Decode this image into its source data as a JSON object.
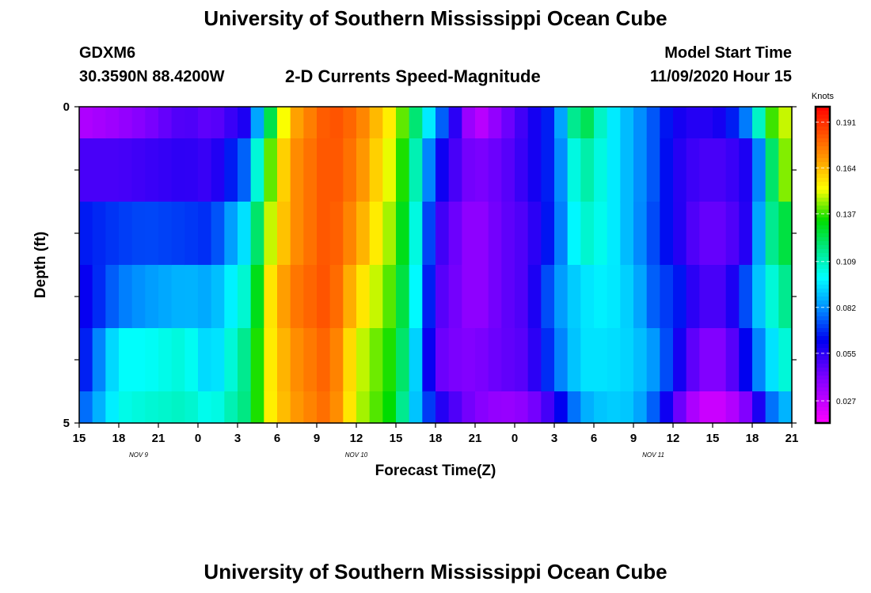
{
  "header": {
    "title_top": "University of Southern Mississippi Ocean Cube",
    "title_bottom": "University of Southern Mississippi Ocean Cube",
    "station": "GDXM6",
    "coords": "30.3590N 88.4200W",
    "subtitle": "2-D Currents Speed-Magnitude",
    "model_label": "Model Start Time",
    "model_time": "11/09/2020 Hour 15"
  },
  "chart_data": {
    "type": "heatmap",
    "title": "2-D Currents Speed-Magnitude",
    "xlabel": "Forecast Time(Z)",
    "ylabel": "Depth (ft)",
    "x_tick_labels": [
      "15",
      "18",
      "21",
      "0",
      "3",
      "6",
      "9",
      "12",
      "15",
      "18",
      "21",
      "0",
      "3",
      "6",
      "9",
      "12",
      "15",
      "18",
      "21"
    ],
    "x_date_labels": [
      {
        "label": "NOV  9",
        "tick_index": 1.5
      },
      {
        "label": "NOV  10",
        "tick_index": 7
      },
      {
        "label": "NOV  11",
        "tick_index": 14.5
      }
    ],
    "y_tick_labels": [
      {
        "label": "0",
        "depth": 0
      },
      {
        "label": "",
        "depth": 1
      },
      {
        "label": "",
        "depth": 2
      },
      {
        "label": "",
        "depth": 3
      },
      {
        "label": "",
        "depth": 4
      },
      {
        "label": "5",
        "depth": 5
      }
    ],
    "ylim": [
      0,
      5
    ],
    "hours": 54,
    "depth_levels": [
      0.25,
      1,
      2,
      3,
      4,
      4.75
    ],
    "colorbar": {
      "unit": "Knots",
      "min": 0.014,
      "max": 0.2,
      "ticks": [
        0.191,
        0.164,
        0.137,
        0.109,
        0.082,
        0.055,
        0.027
      ]
    },
    "keyframes": [
      [
        0,
        0.03,
        0.05,
        0.065,
        0.058,
        0.06,
        0.072
      ],
      [
        3,
        0.035,
        0.05,
        0.07,
        0.078,
        0.1,
        0.102
      ],
      [
        5,
        0.04,
        0.052,
        0.072,
        0.083,
        0.1,
        0.105
      ],
      [
        8,
        0.05,
        0.055,
        0.07,
        0.088,
        0.105,
        0.108
      ],
      [
        10,
        0.045,
        0.052,
        0.068,
        0.085,
        0.09,
        0.1
      ],
      [
        13,
        0.06,
        0.08,
        0.1,
        0.11,
        0.12,
        0.12
      ],
      [
        14,
        0.11,
        0.13,
        0.14,
        0.15,
        0.15,
        0.15
      ],
      [
        16,
        0.165,
        0.17,
        0.17,
        0.175,
        0.17,
        0.168
      ],
      [
        19,
        0.185,
        0.185,
        0.185,
        0.185,
        0.182,
        0.18
      ],
      [
        21,
        0.178,
        0.175,
        0.17,
        0.16,
        0.15,
        0.148
      ],
      [
        24,
        0.15,
        0.145,
        0.14,
        0.135,
        0.132,
        0.13
      ],
      [
        25,
        0.13,
        0.125,
        0.12,
        0.115,
        0.108,
        0.1
      ],
      [
        27,
        0.085,
        0.065,
        0.055,
        0.05,
        0.045,
        0.06
      ],
      [
        29,
        0.045,
        0.045,
        0.04,
        0.04,
        0.04,
        0.045
      ],
      [
        30,
        0.025,
        0.04,
        0.035,
        0.035,
        0.04,
        0.04
      ],
      [
        32,
        0.04,
        0.045,
        0.045,
        0.045,
        0.045,
        0.035
      ],
      [
        34,
        0.055,
        0.055,
        0.05,
        0.05,
        0.048,
        0.038
      ],
      [
        36,
        0.07,
        0.07,
        0.07,
        0.08,
        0.075,
        0.055
      ],
      [
        38,
        0.13,
        0.115,
        0.108,
        0.095,
        0.095,
        0.085
      ],
      [
        40,
        0.1,
        0.1,
        0.1,
        0.098,
        0.095,
        0.092
      ],
      [
        42,
        0.085,
        0.085,
        0.085,
        0.09,
        0.092,
        0.09
      ],
      [
        44,
        0.07,
        0.07,
        0.068,
        0.07,
        0.08,
        0.07
      ],
      [
        45,
        0.06,
        0.058,
        0.06,
        0.07,
        0.065,
        0.05
      ],
      [
        47,
        0.055,
        0.05,
        0.045,
        0.05,
        0.04,
        0.025
      ],
      [
        49,
        0.06,
        0.05,
        0.045,
        0.05,
        0.04,
        0.025
      ],
      [
        51,
        0.085,
        0.06,
        0.06,
        0.08,
        0.07,
        0.045
      ],
      [
        52,
        0.13,
        0.1,
        0.11,
        0.1,
        0.09,
        0.07
      ],
      [
        53,
        0.145,
        0.14,
        0.12,
        0.11,
        0.1,
        0.085
      ],
      [
        54,
        0.15,
        0.145,
        0.13,
        0.12,
        0.11,
        0.09
      ]
    ]
  }
}
